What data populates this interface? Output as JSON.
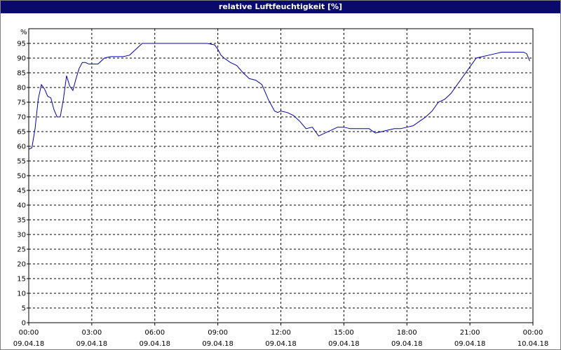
{
  "title": "relative Luftfeuchtigkeit [%]",
  "chart_data": {
    "type": "line",
    "title": "relative Luftfeuchtigkeit [%]",
    "ylabel": "%",
    "xlabel": "",
    "ylim": [
      0,
      100
    ],
    "y_ticks": [
      0,
      5,
      10,
      15,
      20,
      25,
      30,
      35,
      40,
      45,
      50,
      55,
      60,
      65,
      70,
      75,
      80,
      85,
      90,
      95
    ],
    "x_range_hours": [
      0,
      24
    ],
    "x_ticks": [
      {
        "time": "00:00",
        "date": "09.04.18"
      },
      {
        "time": "03:00",
        "date": "09.04.18"
      },
      {
        "time": "06:00",
        "date": "09.04.18"
      },
      {
        "time": "09:00",
        "date": "09.04.18"
      },
      {
        "time": "12:00",
        "date": "09.04.18"
      },
      {
        "time": "15:00",
        "date": "09.04.18"
      },
      {
        "time": "18:00",
        "date": "09.04.18"
      },
      {
        "time": "21:00",
        "date": "09.04.18"
      },
      {
        "time": "00:00",
        "date": "10.04.18"
      }
    ],
    "grid": true,
    "line_color": "#0000b0",
    "series": [
      {
        "x": [
          0.0,
          0.15,
          0.3,
          0.45,
          0.6,
          0.75,
          0.9,
          1.05,
          1.2,
          1.35,
          1.5,
          1.65,
          1.8,
          1.95,
          2.1,
          2.25,
          2.4,
          2.55,
          2.7,
          2.85,
          3.0,
          3.3,
          3.6,
          3.9,
          4.2,
          4.5,
          4.8,
          5.1,
          5.4,
          5.7,
          5.85,
          6.0,
          6.5,
          7.0,
          7.5,
          8.0,
          8.5,
          8.85,
          9.0,
          9.15,
          9.3,
          9.6,
          9.9,
          10.2,
          10.5,
          10.8,
          11.1,
          11.4,
          11.7,
          11.85,
          12.0,
          12.3,
          12.6,
          12.9,
          13.2,
          13.5,
          13.8,
          14.1,
          14.4,
          14.7,
          15.0,
          15.3,
          15.6,
          15.9,
          16.2,
          16.5,
          16.8,
          17.1,
          17.4,
          17.7,
          18.0,
          18.3,
          18.6,
          18.9,
          19.2,
          19.5,
          19.8,
          20.1,
          20.4,
          20.7,
          21.0,
          21.3,
          21.6,
          21.9,
          22.2,
          22.5,
          22.8,
          23.1,
          23.4,
          23.55,
          23.7,
          23.85
        ],
        "y": [
          59,
          59.5,
          66,
          76,
          81,
          79.5,
          77,
          76.5,
          72.5,
          70,
          70,
          76,
          84,
          80.5,
          79,
          83,
          86.5,
          88.5,
          88.5,
          88,
          88,
          88,
          90,
          90.5,
          90.5,
          90.5,
          91,
          93,
          95,
          95,
          95,
          95,
          95,
          95,
          95,
          95,
          95,
          94.5,
          93,
          91,
          90,
          88.5,
          87.5,
          85,
          83,
          82.5,
          81,
          76,
          72,
          71.5,
          72,
          71.5,
          70.5,
          68.5,
          66,
          66.5,
          63.5,
          64.5,
          65.5,
          66.5,
          66.5,
          66,
          66,
          66,
          66,
          64.5,
          65,
          65.5,
          66,
          66,
          66.5,
          67,
          68.5,
          70,
          72,
          75,
          76,
          78,
          81,
          84,
          87,
          90,
          90.5,
          91,
          91.5,
          92,
          92,
          92,
          92,
          92,
          91.5,
          89
        ]
      }
    ]
  }
}
